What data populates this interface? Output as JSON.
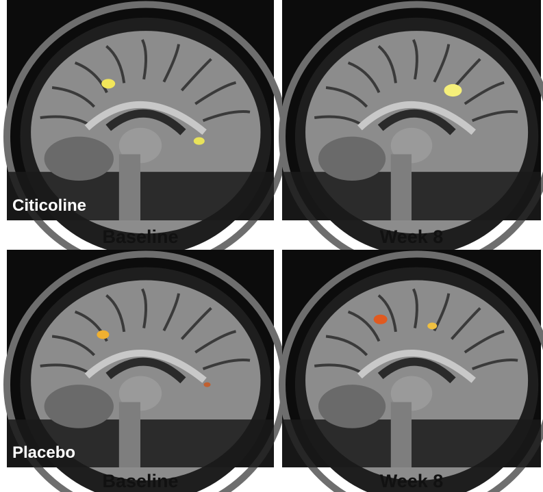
{
  "figure": {
    "rows": [
      {
        "group": "Citicoline",
        "captions": [
          "Baseline",
          "Week 8"
        ]
      },
      {
        "group": "Placebo",
        "captions": [
          "Baseline",
          "Week 8"
        ]
      }
    ]
  }
}
